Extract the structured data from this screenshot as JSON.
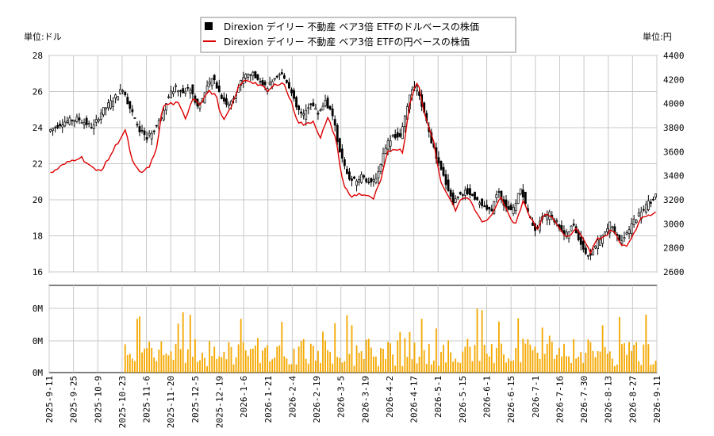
{
  "chart_data": {
    "type": "candlestick+line+bar",
    "legend": [
      {
        "label": "Direxion デイリー 不動産 ベア3倍 ETFのドルベースの株価",
        "color": "#000000",
        "marker": "square"
      },
      {
        "label": "Direxion デイリー 不動産 ベア3倍 ETFの円ベースの株価",
        "color": "#dd0000",
        "marker": "line"
      }
    ],
    "y_left_label": "単位:ドル",
    "y_right_label": "単位:円",
    "y_left_ticks": [
      16,
      18,
      20,
      22,
      24,
      26,
      28
    ],
    "y_right_ticks": [
      2600,
      2800,
      3000,
      3200,
      3400,
      3600,
      3800,
      4000,
      4200,
      4400
    ],
    "y_left_range": [
      16,
      28
    ],
    "y_right_range": [
      2600,
      4400
    ],
    "volume_ticks": [
      "0M",
      "0M",
      "0M"
    ],
    "x_tick_labels": [
      "2025-9-11",
      "2025-9-25",
      "2025-10-9",
      "2025-10-23",
      "2025-11-6",
      "2025-11-20",
      "2025-12-5",
      "2025-12-19",
      "2026-1-6",
      "2026-1-21",
      "2026-2-4",
      "2026-2-19",
      "2026-3-5",
      "2026-3-19",
      "2026-4-2",
      "2026-4-17",
      "2026-5-1",
      "2026-5-15",
      "2026-6-1",
      "2026-6-15",
      "2026-7-1",
      "2026-7-16",
      "2026-7-30",
      "2026-8-13",
      "2026-8-27",
      "2026-9-11"
    ],
    "usd_price_keypoints": [
      [
        0,
        23.8
      ],
      [
        2,
        24.3
      ],
      [
        4,
        24.5
      ],
      [
        6,
        24.0
      ],
      [
        7,
        24.8
      ],
      [
        9,
        25.7
      ],
      [
        10,
        26.2
      ],
      [
        11,
        25.0
      ],
      [
        12,
        24.0
      ],
      [
        13,
        23.4
      ],
      [
        14,
        23.8
      ],
      [
        15,
        24.5
      ],
      [
        16,
        25.8
      ],
      [
        17,
        26.2
      ],
      [
        18,
        26.0
      ],
      [
        19,
        26.2
      ],
      [
        20,
        25.1
      ],
      [
        21,
        26.0
      ],
      [
        22,
        26.8
      ],
      [
        23,
        25.8
      ],
      [
        24,
        25.2
      ],
      [
        25,
        25.9
      ],
      [
        26,
        26.8
      ],
      [
        27,
        27.0
      ],
      [
        28,
        26.8
      ],
      [
        29,
        26.2
      ],
      [
        30,
        26.5
      ],
      [
        31,
        27.0
      ],
      [
        32,
        26.5
      ],
      [
        33,
        25.2
      ],
      [
        34,
        24.6
      ],
      [
        35,
        25.4
      ],
      [
        36,
        24.8
      ],
      [
        37,
        25.5
      ],
      [
        38,
        24.5
      ],
      [
        39,
        22.5
      ],
      [
        40,
        21.2
      ],
      [
        41,
        21.0
      ],
      [
        42,
        21.4
      ],
      [
        43,
        20.8
      ],
      [
        44,
        21.5
      ],
      [
        45,
        23.0
      ],
      [
        46,
        23.6
      ],
      [
        47,
        23.4
      ],
      [
        48,
        25.5
      ],
      [
        49,
        26.4
      ],
      [
        50,
        25.0
      ],
      [
        51,
        23.4
      ],
      [
        52,
        22.0
      ],
      [
        53,
        21.0
      ],
      [
        54,
        19.8
      ],
      [
        55,
        20.4
      ],
      [
        56,
        20.4
      ],
      [
        57,
        20.1
      ],
      [
        58,
        19.6
      ],
      [
        59,
        19.3
      ],
      [
        60,
        20.5
      ],
      [
        61,
        19.6
      ],
      [
        62,
        19.4
      ],
      [
        63,
        20.7
      ],
      [
        64,
        19.2
      ],
      [
        65,
        18.3
      ],
      [
        66,
        19.1
      ],
      [
        67,
        19.2
      ],
      [
        68,
        18.6
      ],
      [
        69,
        18.0
      ],
      [
        70,
        18.6
      ],
      [
        71,
        17.6
      ],
      [
        72,
        16.8
      ],
      [
        73,
        17.5
      ],
      [
        74,
        18.0
      ],
      [
        75,
        18.7
      ],
      [
        76,
        17.8
      ],
      [
        77,
        17.9
      ],
      [
        78,
        18.8
      ],
      [
        79,
        19.3
      ],
      [
        80,
        19.8
      ],
      [
        81,
        20.2
      ]
    ],
    "jpy_price_keypoints": [
      [
        0,
        3420
      ],
      [
        2,
        3500
      ],
      [
        4,
        3560
      ],
      [
        6,
        3440
      ],
      [
        7,
        3460
      ],
      [
        9,
        3680
      ],
      [
        10,
        3780
      ],
      [
        11,
        3500
      ],
      [
        12,
        3420
      ],
      [
        13,
        3460
      ],
      [
        14,
        3580
      ],
      [
        15,
        3980
      ],
      [
        16,
        4000
      ],
      [
        17,
        4000
      ],
      [
        18,
        3880
      ],
      [
        19,
        4050
      ],
      [
        20,
        4000
      ],
      [
        21,
        4100
      ],
      [
        22,
        4080
      ],
      [
        23,
        3850
      ],
      [
        24,
        3950
      ],
      [
        25,
        4130
      ],
      [
        26,
        4200
      ],
      [
        27,
        4180
      ],
      [
        28,
        4150
      ],
      [
        29,
        4100
      ],
      [
        30,
        4160
      ],
      [
        31,
        4180
      ],
      [
        32,
        4030
      ],
      [
        33,
        3850
      ],
      [
        34,
        3820
      ],
      [
        35,
        3860
      ],
      [
        36,
        3720
      ],
      [
        37,
        3880
      ],
      [
        38,
        3720
      ],
      [
        39,
        3340
      ],
      [
        40,
        3220
      ],
      [
        41,
        3250
      ],
      [
        42,
        3240
      ],
      [
        43,
        3200
      ],
      [
        44,
        3350
      ],
      [
        45,
        3600
      ],
      [
        46,
        3630
      ],
      [
        47,
        3600
      ],
      [
        48,
        4050
      ],
      [
        49,
        4180
      ],
      [
        50,
        3880
      ],
      [
        51,
        3720
      ],
      [
        52,
        3350
      ],
      [
        53,
        3240
      ],
      [
        54,
        3120
      ],
      [
        55,
        3220
      ],
      [
        56,
        3200
      ],
      [
        57,
        3060
      ],
      [
        58,
        3000
      ],
      [
        59,
        3100
      ],
      [
        60,
        3240
      ],
      [
        61,
        3080
      ],
      [
        62,
        3000
      ],
      [
        63,
        3200
      ],
      [
        64,
        3050
      ],
      [
        65,
        2960
      ],
      [
        66,
        3100
      ],
      [
        67,
        3040
      ],
      [
        68,
        2950
      ],
      [
        69,
        2880
      ],
      [
        70,
        2960
      ],
      [
        71,
        2870
      ],
      [
        72,
        2760
      ],
      [
        73,
        2880
      ],
      [
        74,
        2900
      ],
      [
        75,
        2960
      ],
      [
        76,
        2820
      ],
      [
        77,
        2830
      ],
      [
        78,
        2960
      ],
      [
        79,
        3060
      ],
      [
        80,
        3080
      ],
      [
        81,
        3120
      ]
    ]
  }
}
